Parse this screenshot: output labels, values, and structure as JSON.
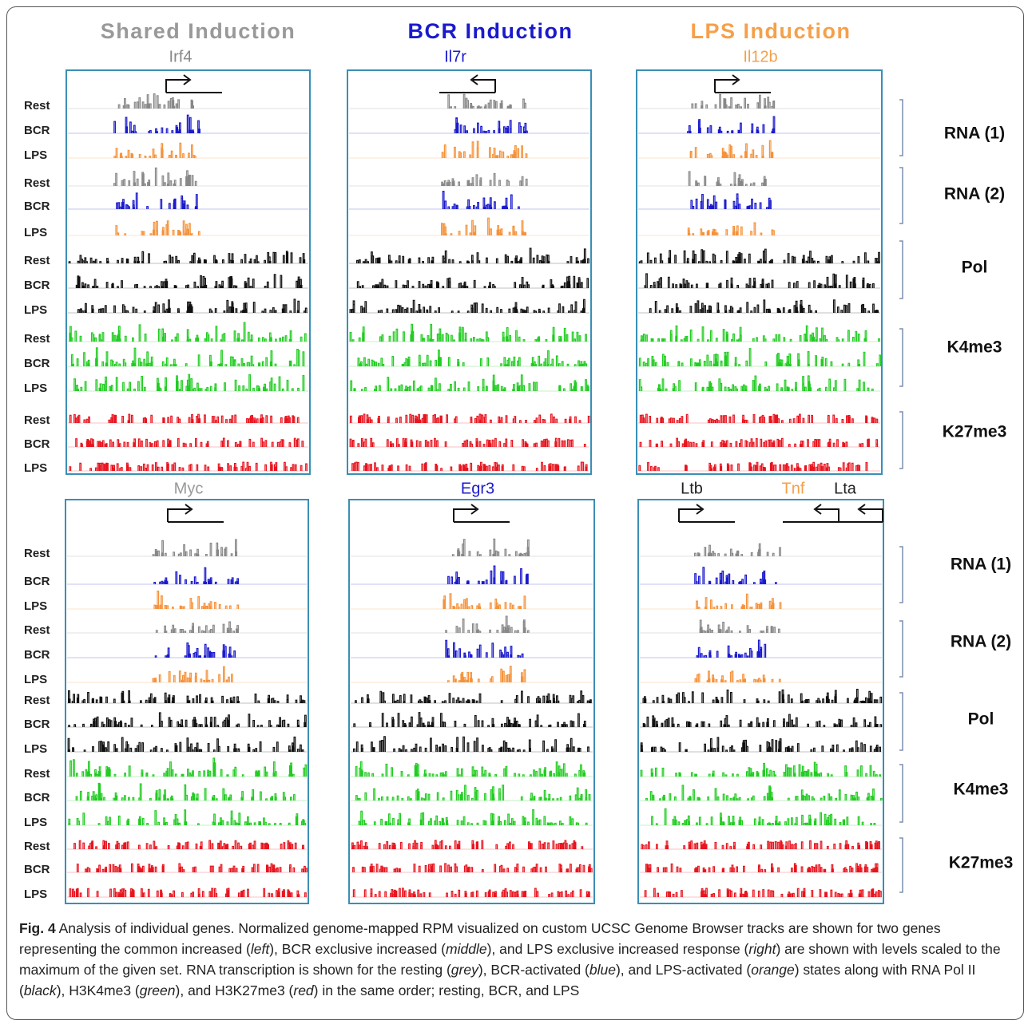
{
  "columns": [
    {
      "title": "Shared Induction",
      "color": "#999999"
    },
    {
      "title": "BCR Induction",
      "color": "#1a1acc"
    },
    {
      "title": "LPS Induction",
      "color": "#f5a04a"
    }
  ],
  "rows": [
    {
      "panels": [
        {
          "genes": [
            {
              "name": "Irf4",
              "color": "#888888"
            }
          ]
        },
        {
          "genes": [
            {
              "name": "Il7r",
              "color": "#1a1acc"
            }
          ]
        },
        {
          "genes": [
            {
              "name": "Il12b",
              "color": "#f5a04a"
            }
          ]
        }
      ],
      "track_labels": [
        "Rest",
        "BCR",
        "LPS",
        "Rest",
        "BCR",
        "LPS",
        "Rest",
        "BCR",
        "LPS",
        "Rest",
        "BCR",
        "LPS",
        "Rest",
        "BCR",
        "LPS"
      ],
      "groups": [
        "RNA (1)",
        "RNA (2)",
        "Pol",
        "K4me3",
        "K27me3"
      ]
    },
    {
      "panels": [
        {
          "genes": [
            {
              "name": "Myc",
              "color": "#999999"
            }
          ]
        },
        {
          "genes": [
            {
              "name": "Egr3",
              "color": "#1a1acc"
            }
          ]
        },
        {
          "genes": [
            {
              "name": "Ltb",
              "color": "#222222"
            },
            {
              "name": "Tnf",
              "color": "#f5a04a"
            },
            {
              "name": "Lta",
              "color": "#222222"
            }
          ]
        }
      ],
      "track_labels": [
        "Rest",
        "BCR",
        "LPS",
        "Rest",
        "BCR",
        "LPS",
        "Rest",
        "BCR",
        "LPS",
        "Rest",
        "BCR",
        "LPS",
        "Rest",
        "BCR",
        "LPS"
      ],
      "groups": [
        "RNA (1)",
        "RNA (2)",
        "Pol",
        "K4me3",
        "K27me3"
      ]
    }
  ],
  "caption": {
    "label": "Fig. 4",
    "parts": [
      {
        "text": " Analysis of individual genes. Normalized genome-mapped RPM visualized on custom UCSC Genome Browser tracks are shown for two genes representing the common increased (",
        "italic": false
      },
      {
        "text": "left",
        "italic": true
      },
      {
        "text": "), BCR exclusive increased (",
        "italic": false
      },
      {
        "text": "middle",
        "italic": true
      },
      {
        "text": "), and LPS exclusive increased response (",
        "italic": false
      },
      {
        "text": "right",
        "italic": true
      },
      {
        "text": ") are shown with levels scaled to the maximum of the given set. RNA transcription is shown for the resting (",
        "italic": false
      },
      {
        "text": "grey",
        "italic": true
      },
      {
        "text": "), BCR-activated (",
        "italic": false
      },
      {
        "text": "blue",
        "italic": true
      },
      {
        "text": "), and LPS-activated (",
        "italic": false
      },
      {
        "text": "orange",
        "italic": true
      },
      {
        "text": ") states along with RNA Pol II (",
        "italic": false
      },
      {
        "text": "black",
        "italic": true
      },
      {
        "text": "), H3K4me3 (",
        "italic": false
      },
      {
        "text": "green",
        "italic": true
      },
      {
        "text": "), and H3K27me3 (",
        "italic": false
      },
      {
        "text": "red",
        "italic": true
      },
      {
        "text": ") in the same order; resting, BCR, and LPS",
        "italic": false
      }
    ]
  }
}
